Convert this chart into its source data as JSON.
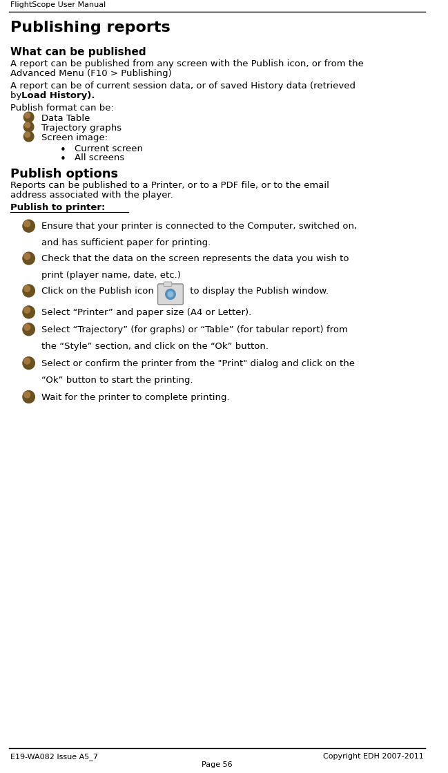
{
  "header_text": "FlightScope User Manual",
  "title": "Publishing reports",
  "section1_heading": "What can be published",
  "section1_para1a": "A report can be published from any screen with the Publish icon, or from the",
  "section1_para1b": "Advanced Menu (F10 > Publishing)",
  "section1_para2a": "A report can be of current session data, or of saved History data (retrieved",
  "section1_para2b_normal": "by ",
  "section1_para2b_bold": "Load History).",
  "section1_para3": "Publish format can be:",
  "bullet1_items": [
    "Data Table",
    "Trajectory graphs",
    "Screen image:"
  ],
  "sub_bullet_items": [
    "Current screen",
    "All screens"
  ],
  "section2_heading": "Publish options",
  "section2_para1a": "Reports can be published to a Printer, or to a PDF file, or to the email",
  "section2_para1b": "address associated with the player.",
  "section2_underline": "Publish to printer:",
  "step1a": "Ensure that your printer is connected to the Computer, switched on,",
  "step1b": "and has sufficient paper for printing.",
  "step2a": "Check that the data on the screen represents the data you wish to",
  "step2b": "print (player name, date, etc.)",
  "step3a": "Click on the Publish icon ",
  "step3b": " to display the Publish window.",
  "step4": "Select “Printer” and paper size (A4 or Letter).",
  "step5a": "Select “Trajectory” (for graphs) or “Table” (for tabular report) from",
  "step5b": "the “Style” section, and click on the “Ok” button.",
  "step6a": "Select or confirm the printer from the \"Print\" dialog and click on the",
  "step6b": "“Ok” button to start the printing.",
  "step7": "Wait for the printer to complete printing.",
  "footer_left": "E19-WA082 Issue A5_7",
  "footer_right": "Copyright EDH 2007-2011",
  "footer_center": "Page 56",
  "bg_color": "#ffffff",
  "text_color": "#000000",
  "bullet_color_dark": "#6b5020",
  "bullet_color_light": "#a07840"
}
